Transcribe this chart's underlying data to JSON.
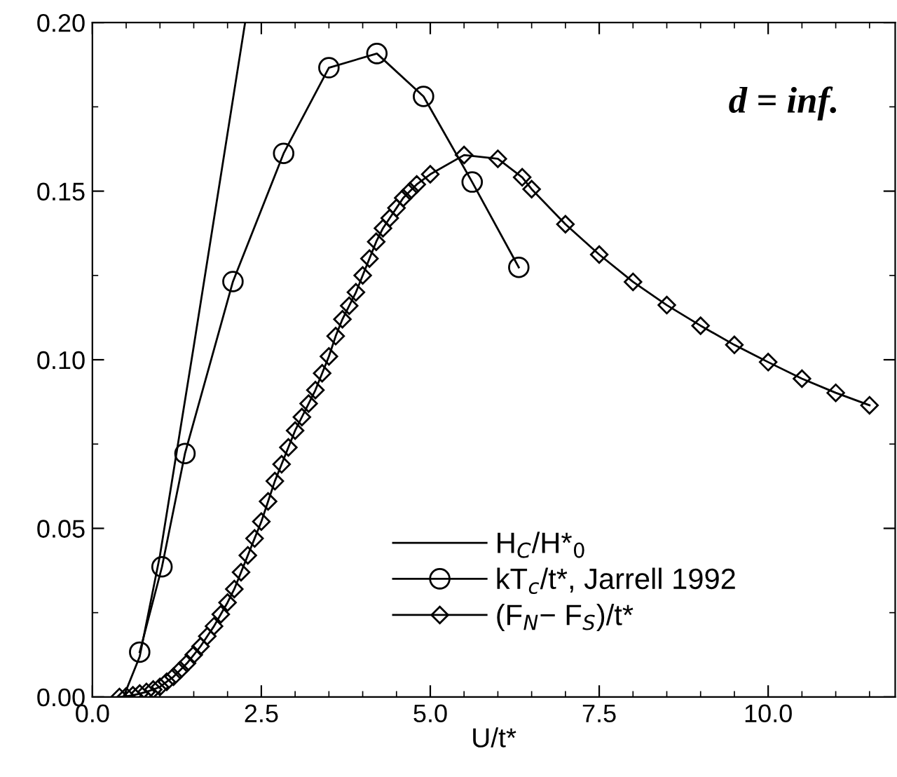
{
  "chart_data": {
    "type": "line",
    "xlabel": "U/t*",
    "annotations": [
      "d = inf."
    ],
    "xlim": [
      0,
      11.88
    ],
    "ylim": [
      0,
      0.2
    ],
    "xticks": [
      {
        "value": 0,
        "label": "0.0"
      },
      {
        "value": 2.5,
        "label": "2.5"
      },
      {
        "value": 5,
        "label": "5.0"
      },
      {
        "value": 7.5,
        "label": "7.5"
      },
      {
        "value": 10,
        "label": "10.0"
      }
    ],
    "yticks": [
      {
        "value": 0,
        "label": "0.00"
      },
      {
        "value": 0.05,
        "label": "0.05"
      },
      {
        "value": 0.1,
        "label": "0.10"
      },
      {
        "value": 0.15,
        "label": "0.15"
      },
      {
        "value": 0.2,
        "label": "0.20"
      }
    ],
    "grid": false,
    "legend": "bottom right",
    "series": [
      {
        "name": "H$_{C}$/H*$_{0}$",
        "color": "#000000",
        "marker": "none",
        "x": [
          0.46,
          0.7,
          1.0,
          1.5,
          2.26
        ],
        "values": [
          0,
          0.012,
          0.042,
          0.104,
          0.2
        ]
      },
      {
        "name": "kT$_{c}$/t*, Jarrell 1992",
        "color": "#000000",
        "marker": "circle",
        "x": [
          0.7,
          1.03,
          1.37,
          2.08,
          2.83,
          3.5,
          4.21,
          4.9,
          5.62,
          6.31
        ],
        "values": [
          0.0133,
          0.0386,
          0.0722,
          0.1232,
          0.1612,
          0.1866,
          0.1908,
          0.1781,
          0.1527,
          0.1274
        ]
      },
      {
        "name": "(F$_{N}$− F$_{S}$)/t*",
        "color": "#000000",
        "marker": "diamond",
        "x": [
          0.4,
          0.5,
          0.6,
          0.7,
          0.8,
          0.9,
          1.0,
          1.1,
          1.2,
          1.3,
          1.4,
          1.5,
          1.6,
          1.7,
          1.8,
          1.9,
          2.0,
          2.1,
          2.2,
          2.3,
          2.4,
          2.5,
          2.6,
          2.7,
          2.8,
          2.9,
          3.0,
          3.1,
          3.2,
          3.3,
          3.4,
          3.5,
          3.6,
          3.7,
          3.8,
          3.9,
          4.0,
          4.1,
          4.2,
          4.3,
          4.4,
          4.5,
          4.6,
          4.7,
          4.8,
          5.0,
          5.5,
          6.0,
          6.36,
          6.5,
          7.0,
          7.5,
          8.0,
          8.5,
          9.0,
          9.5,
          10.0,
          10.5,
          11.0,
          11.5
        ],
        "values": [
          0,
          0.0002,
          0.0005,
          0.001,
          0.0015,
          0.0022,
          0.003,
          0.0045,
          0.006,
          0.008,
          0.01,
          0.0125,
          0.015,
          0.018,
          0.021,
          0.0245,
          0.028,
          0.032,
          0.037,
          0.042,
          0.047,
          0.052,
          0.058,
          0.064,
          0.069,
          0.074,
          0.079,
          0.083,
          0.087,
          0.091,
          0.096,
          0.101,
          0.107,
          0.112,
          0.116,
          0.12,
          0.125,
          0.13,
          0.135,
          0.139,
          0.142,
          0.145,
          0.148,
          0.15,
          0.152,
          0.155,
          0.1607,
          0.1596,
          0.1541,
          0.1506,
          0.1402,
          0.1312,
          0.1231,
          0.1162,
          0.1101,
          0.1044,
          0.0993,
          0.0944,
          0.0902,
          0.0865
        ]
      }
    ]
  }
}
